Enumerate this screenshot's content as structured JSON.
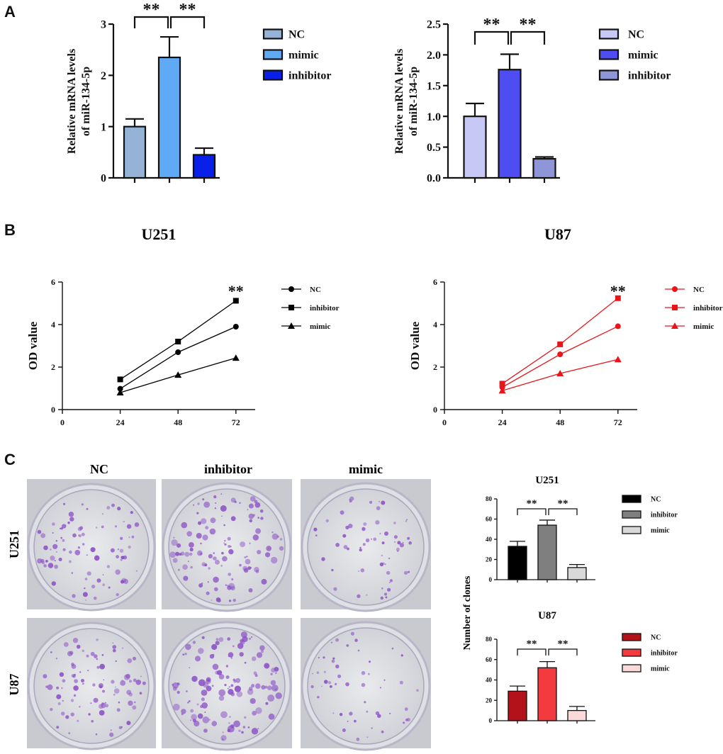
{
  "panel_labels": [
    "A",
    "B",
    "C"
  ],
  "colors": {
    "a1": [
      "#95b3d7",
      "#5fa9f5",
      "#0a1fe8"
    ],
    "a2": [
      "#c8c8f7",
      "#4d4df2",
      "#8f96d8"
    ],
    "b1": "#000000",
    "b2": "#e8161b",
    "c1": [
      "#000000",
      "#7f7f7f",
      "#d9d9d9"
    ],
    "c2": [
      "#b3121b",
      "#f23a3f",
      "#fad9d9"
    ],
    "stain": "#8a4fc6"
  },
  "chart_data": [
    {
      "id": "A-left",
      "type": "bar",
      "title": "",
      "ylabel": "Relative mRNA levels of miR-134-5p",
      "ylabel_lines": [
        "Relative mRNA levels",
        "of miR-134-5p"
      ],
      "categories": [
        "NC",
        "mimic",
        "inhibitor"
      ],
      "values": [
        1.0,
        2.35,
        0.45
      ],
      "errors": [
        0.15,
        0.4,
        0.13
      ],
      "ylim": [
        0,
        3
      ],
      "yticks": [
        0,
        1,
        2,
        3
      ],
      "ytick_labels": [
        "0",
        "1",
        "2",
        "3"
      ],
      "significance": [
        "**",
        "**"
      ],
      "legend": [
        "NC",
        "mimic",
        "inhibitor"
      ]
    },
    {
      "id": "A-right",
      "type": "bar",
      "title": "",
      "ylabel": "Relative mRNA levels of miR-134-5p",
      "ylabel_lines": [
        "Relative mRNA levels",
        "of miR-134-5p"
      ],
      "categories": [
        "NC",
        "mimic",
        "inhibitor"
      ],
      "values": [
        1.0,
        1.76,
        0.31
      ],
      "errors": [
        0.21,
        0.25,
        0.03
      ],
      "ylim": [
        0,
        2.5
      ],
      "yticks": [
        0,
        0.5,
        1.0,
        1.5,
        2.0,
        2.5
      ],
      "ytick_labels": [
        "0.0",
        "0.5",
        "1.0",
        "1.5",
        "2.0",
        "2.5"
      ],
      "significance": [
        "**",
        "**"
      ],
      "legend": [
        "NC",
        "mimic",
        "inhibitor"
      ]
    },
    {
      "id": "B-U251",
      "type": "line",
      "title": "U251",
      "ylabel": "OD value",
      "x": [
        24,
        48,
        72
      ],
      "xlim": [
        0,
        80
      ],
      "xticks": [
        0,
        24,
        48,
        72
      ],
      "xtick_labels": [
        "0",
        "24",
        "48",
        "72"
      ],
      "ylim": [
        0,
        6
      ],
      "yticks": [
        0,
        2,
        4,
        6
      ],
      "ytick_labels": [
        "0",
        "2",
        "4",
        "6"
      ],
      "series": [
        {
          "name": "NC",
          "marker": "circle",
          "values": [
            0.98,
            2.7,
            3.9
          ]
        },
        {
          "name": "inhibitor",
          "marker": "square",
          "values": [
            1.42,
            3.2,
            5.12
          ]
        },
        {
          "name": "mimic",
          "marker": "triangle",
          "values": [
            0.8,
            1.63,
            2.43
          ]
        }
      ],
      "annotation": "**"
    },
    {
      "id": "B-U87",
      "type": "line",
      "title": "U87",
      "ylabel": "OD value",
      "x": [
        24,
        48,
        72
      ],
      "xlim": [
        0,
        80
      ],
      "xticks": [
        0,
        24,
        48,
        72
      ],
      "xtick_labels": [
        "0",
        "24",
        "48",
        "72"
      ],
      "ylim": [
        0,
        6
      ],
      "yticks": [
        0,
        2,
        4,
        6
      ],
      "ytick_labels": [
        "0",
        "2",
        "4",
        "6"
      ],
      "series": [
        {
          "name": "NC",
          "marker": "circle",
          "values": [
            1.05,
            2.6,
            3.92
          ]
        },
        {
          "name": "inhibitor",
          "marker": "square",
          "values": [
            1.22,
            3.07,
            5.24
          ]
        },
        {
          "name": "mimic",
          "marker": "triangle",
          "values": [
            0.89,
            1.7,
            2.36
          ]
        }
      ],
      "annotation": "**"
    },
    {
      "id": "C-U251",
      "type": "bar",
      "title": "U251",
      "ylabel": "Number of clones",
      "categories": [
        "NC",
        "inhibitor",
        "mimic"
      ],
      "values": [
        33,
        54,
        12
      ],
      "errors": [
        5,
        5,
        3
      ],
      "ylim": [
        0,
        80
      ],
      "yticks": [
        0,
        20,
        40,
        60,
        80
      ],
      "ytick_labels": [
        "0",
        "20",
        "40",
        "60",
        "80"
      ],
      "significance": [
        "**",
        "**"
      ],
      "legend": [
        "NC",
        "inhibitor",
        "mimic"
      ]
    },
    {
      "id": "C-U87",
      "type": "bar",
      "title": "U87",
      "ylabel": "Number of clones",
      "categories": [
        "NC",
        "inhibitor",
        "mimic"
      ],
      "values": [
        29,
        52,
        10
      ],
      "errors": [
        5,
        6,
        4
      ],
      "ylim": [
        0,
        80
      ],
      "yticks": [
        0,
        20,
        40,
        60,
        80
      ],
      "ytick_labels": [
        "0",
        "20",
        "40",
        "60",
        "80"
      ],
      "significance": [
        "**",
        "**"
      ],
      "legend": [
        "NC",
        "inhibitor",
        "mimic"
      ]
    }
  ],
  "plates": {
    "column_labels": [
      "NC",
      "inhibitor",
      "mimic"
    ],
    "row_labels": [
      "U251",
      "U87"
    ],
    "colony_density": [
      [
        0.55,
        0.8,
        0.3
      ],
      [
        0.6,
        0.9,
        0.2
      ]
    ]
  }
}
